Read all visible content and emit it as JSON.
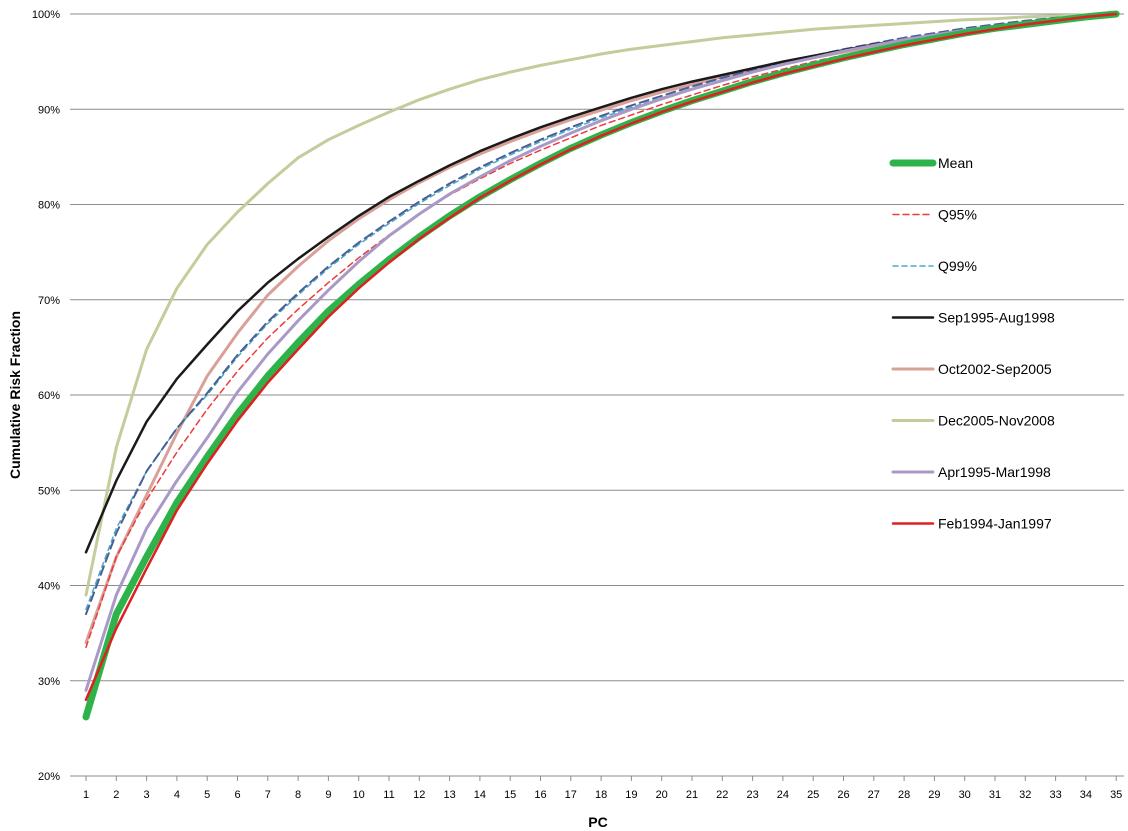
{
  "chart_data": {
    "type": "line",
    "title": "",
    "xlabel": "PC",
    "ylabel": "Cumulative Risk Fraction",
    "x": [
      1,
      2,
      3,
      4,
      5,
      6,
      7,
      8,
      9,
      10,
      11,
      12,
      13,
      14,
      15,
      16,
      17,
      18,
      19,
      20,
      21,
      22,
      23,
      24,
      25,
      26,
      27,
      28,
      29,
      30,
      31,
      32,
      33,
      34,
      35
    ],
    "xlim": [
      1,
      35
    ],
    "ylim": [
      0.2,
      1.0
    ],
    "yticks": [
      0.2,
      0.3,
      0.4,
      0.5,
      0.6,
      0.7,
      0.8,
      0.9,
      1.0
    ],
    "ytick_labels": [
      "20%",
      "30%",
      "40%",
      "50%",
      "60%",
      "70%",
      "80%",
      "90%",
      "100%"
    ],
    "grid": "horizontal",
    "legend_position": "right",
    "series": [
      {
        "name": "Dec2005-Nov2008",
        "color": "#c4cc9c",
        "width": 3,
        "dash": "",
        "values": [
          0.39,
          0.545,
          0.648,
          0.712,
          0.758,
          0.792,
          0.822,
          0.849,
          0.868,
          0.883,
          0.897,
          0.91,
          0.921,
          0.931,
          0.939,
          0.946,
          0.952,
          0.958,
          0.963,
          0.967,
          0.971,
          0.975,
          0.978,
          0.981,
          0.984,
          0.986,
          0.988,
          0.99,
          0.992,
          0.994,
          0.995,
          0.997,
          0.998,
          0.999,
          1.0
        ]
      },
      {
        "name": "Oct2002-Sep2005",
        "color": "#d9a098",
        "width": 3,
        "dash": "",
        "values": [
          0.34,
          0.43,
          0.495,
          0.56,
          0.62,
          0.665,
          0.705,
          0.735,
          0.762,
          0.785,
          0.805,
          0.823,
          0.839,
          0.853,
          0.866,
          0.878,
          0.889,
          0.899,
          0.909,
          0.918,
          0.926,
          0.934,
          0.941,
          0.948,
          0.954,
          0.96,
          0.966,
          0.971,
          0.976,
          0.981,
          0.986,
          0.99,
          0.994,
          0.997,
          1.0
        ]
      },
      {
        "name": "Q99%",
        "color": "#4bacc6",
        "width": 1.5,
        "dash": "5,4",
        "values": [
          0.375,
          0.46,
          0.52,
          0.565,
          0.6,
          0.64,
          0.675,
          0.705,
          0.733,
          0.758,
          0.78,
          0.801,
          0.82,
          0.837,
          0.852,
          0.866,
          0.879,
          0.891,
          0.902,
          0.912,
          0.922,
          0.931,
          0.94,
          0.948,
          0.955,
          0.962,
          0.968,
          0.974,
          0.979,
          0.984,
          0.988,
          0.992,
          0.995,
          0.998,
          1.0
        ]
      },
      {
        "name": "",
        "color": "#4a5f96",
        "width": 2,
        "dash": "9,5",
        "values": [
          0.37,
          0.455,
          0.52,
          0.565,
          0.602,
          0.642,
          0.677,
          0.707,
          0.735,
          0.76,
          0.782,
          0.803,
          0.822,
          0.839,
          0.854,
          0.868,
          0.881,
          0.893,
          0.904,
          0.914,
          0.924,
          0.933,
          0.941,
          0.949,
          0.956,
          0.963,
          0.969,
          0.975,
          0.98,
          0.985,
          0.989,
          0.993,
          0.996,
          0.998,
          1.0
        ]
      },
      {
        "name": "Q95%",
        "color": "#ee3b3b",
        "width": 1.5,
        "dash": "6,4",
        "values": [
          0.335,
          0.43,
          0.49,
          0.54,
          0.585,
          0.625,
          0.66,
          0.69,
          0.718,
          0.744,
          0.768,
          0.79,
          0.81,
          0.827,
          0.843,
          0.857,
          0.87,
          0.883,
          0.894,
          0.905,
          0.915,
          0.925,
          0.934,
          0.942,
          0.95,
          0.957,
          0.964,
          0.97,
          0.976,
          0.981,
          0.986,
          0.99,
          0.994,
          0.997,
          1.0
        ]
      },
      {
        "name": "Sep1995-Aug1998",
        "color": "#1a1a1a",
        "width": 2.5,
        "dash": "",
        "values": [
          0.435,
          0.51,
          0.572,
          0.617,
          0.653,
          0.688,
          0.718,
          0.743,
          0.766,
          0.788,
          0.808,
          0.825,
          0.841,
          0.856,
          0.869,
          0.881,
          0.892,
          0.902,
          0.912,
          0.921,
          0.929,
          0.936,
          0.943,
          0.95,
          0.956,
          0.962,
          0.968,
          0.973,
          0.978,
          0.983,
          0.987,
          0.991,
          0.994,
          0.997,
          1.0
        ]
      },
      {
        "name": "Apr1995-Mar1998",
        "color": "#a999c7",
        "width": 3,
        "dash": "",
        "values": [
          0.29,
          0.39,
          0.46,
          0.51,
          0.555,
          0.603,
          0.643,
          0.678,
          0.71,
          0.74,
          0.767,
          0.79,
          0.811,
          0.829,
          0.846,
          0.861,
          0.875,
          0.888,
          0.9,
          0.911,
          0.921,
          0.93,
          0.939,
          0.947,
          0.954,
          0.961,
          0.967,
          0.973,
          0.978,
          0.983,
          0.987,
          0.991,
          0.995,
          0.998,
          1.0
        ]
      },
      {
        "name": "Mean",
        "color": "#2db34a",
        "width": 7,
        "dash": "",
        "values": [
          0.262,
          0.37,
          0.43,
          0.487,
          0.535,
          0.58,
          0.62,
          0.655,
          0.688,
          0.716,
          0.742,
          0.766,
          0.788,
          0.808,
          0.826,
          0.843,
          0.859,
          0.873,
          0.886,
          0.898,
          0.909,
          0.919,
          0.929,
          0.938,
          0.946,
          0.954,
          0.961,
          0.968,
          0.974,
          0.98,
          0.985,
          0.989,
          0.993,
          0.997,
          1.0
        ]
      },
      {
        "name": "Feb1994-Jan1997",
        "color": "#e02020",
        "width": 2.5,
        "dash": "",
        "values": [
          0.28,
          0.355,
          0.418,
          0.479,
          0.528,
          0.573,
          0.613,
          0.648,
          0.682,
          0.712,
          0.739,
          0.764,
          0.786,
          0.807,
          0.825,
          0.842,
          0.858,
          0.872,
          0.885,
          0.897,
          0.908,
          0.918,
          0.928,
          0.937,
          0.945,
          0.953,
          0.96,
          0.967,
          0.973,
          0.979,
          0.984,
          0.989,
          0.993,
          0.997,
          1.0
        ]
      }
    ],
    "legend": [
      {
        "name": "Mean",
        "color": "#2db34a",
        "width": 7,
        "dash": ""
      },
      {
        "name": "Q95%",
        "color": "#ee3b3b",
        "width": 1.5,
        "dash": "6,4"
      },
      {
        "name": "Q99%",
        "color": "#4bacc6",
        "width": 1.5,
        "dash": "5,4"
      },
      {
        "name": "Sep1995-Aug1998",
        "color": "#1a1a1a",
        "width": 2.5,
        "dash": ""
      },
      {
        "name": "Oct2002-Sep2005",
        "color": "#d9a098",
        "width": 3,
        "dash": ""
      },
      {
        "name": "Dec2005-Nov2008",
        "color": "#c4cc9c",
        "width": 3,
        "dash": ""
      },
      {
        "name": "Apr1995-Mar1998",
        "color": "#a999c7",
        "width": 3,
        "dash": ""
      },
      {
        "name": "Feb1994-Jan1997",
        "color": "#e02020",
        "width": 2.5,
        "dash": ""
      }
    ]
  }
}
